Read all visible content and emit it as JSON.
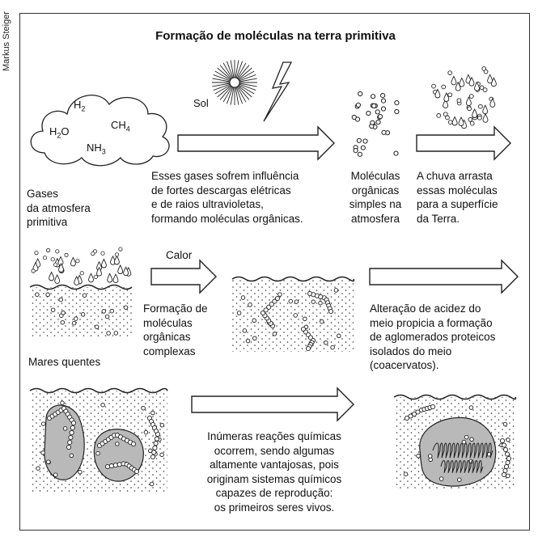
{
  "credit": "Markus Steiger",
  "title": "Formação de moléculas na terra primitiva",
  "gases": [
    "H2",
    "H2O",
    "CH4",
    "NH3"
  ],
  "labels": {
    "sol": "Sol",
    "calor": "Calor",
    "gases_atm": [
      "Gases",
      "da atmosfera",
      "primitiva"
    ],
    "descargas": [
      "Esses gases sofrem influência",
      "de fortes descargas elétricas",
      "e de raios ultravioletas,",
      "formando moléculas orgânicas."
    ],
    "moleculas_simples": [
      "Moléculas",
      "orgânicas",
      "simples na",
      "atmosfera"
    ],
    "chuva": [
      "A chuva arrasta",
      "essas moléculas",
      "para a superfície",
      "da Terra."
    ],
    "complexas": [
      "Formação de",
      "moléculas",
      "orgânicas",
      "complexas"
    ],
    "mares": "Mares quentes",
    "acidez": [
      "Alteração de acidez do",
      "meio propicia a formação",
      "de aglomerados proteicos",
      "isolados do meio",
      "(coacervatos)."
    ],
    "reacoes": [
      "Inúmeras reações químicas",
      "ocorrem, sendo algumas",
      "altamente vantajosas, pois",
      "originam sistemas químicos",
      "capazes de reprodução:",
      "os primeiros seres vivos."
    ]
  }
}
